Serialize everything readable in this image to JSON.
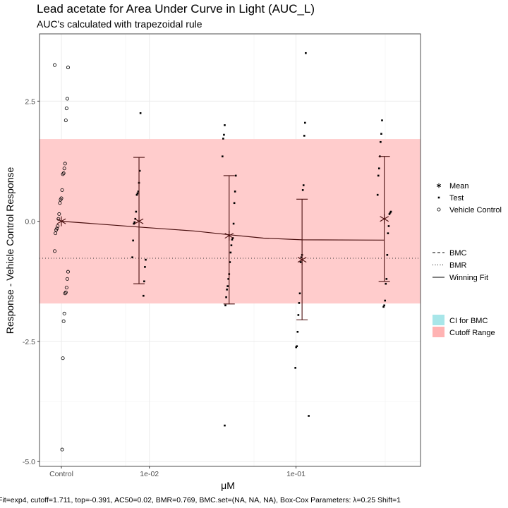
{
  "chart_data": {
    "type": "scatter",
    "title": "Lead acetate for Area Under Curve in Light (AUC_L)",
    "subtitle": "AUC's calculated with trapezoidal rule",
    "xlabel": "μM",
    "ylabel": "Response - Vehicle Control Response",
    "caption": "Fit=exp4, cutoff=1.711, top=-0.391, AC50=0.02, BMR=0.769, BMC.set=(NA, NA, NA), Box-Cox Parameters: λ=0.25 Shift=1",
    "x_ticks": [
      "Control",
      "1e-02",
      "1e-01"
    ],
    "y_ticks": [
      {
        "value": 2.5,
        "label": "2.5"
      },
      {
        "value": 0,
        "label": "0.0"
      },
      {
        "value": -2.5,
        "label": "-2.5"
      },
      {
        "value": -5,
        "label": "-5.0"
      }
    ],
    "ylim": [
      -5.1,
      3.9
    ],
    "cutoff_range": [
      -1.711,
      1.711
    ],
    "bmr_line": -0.769,
    "colors": {
      "cutoff": "#ffcccc",
      "ci": "#a8e6e9",
      "cutoff_legend": "#ffb3b3",
      "line": "#4a0f0f",
      "points": "#000000",
      "grid": "#ebebeb",
      "panel_border": "#4d4d4d"
    },
    "legend": {
      "points": [
        {
          "label": "Mean",
          "shape": "asterisk"
        },
        {
          "label": "Test",
          "shape": "dot"
        },
        {
          "label": "Vehicle Control",
          "shape": "circle"
        }
      ],
      "lines": [
        {
          "label": "BMC",
          "style": "dashed"
        },
        {
          "label": "BMR",
          "style": "dotted"
        },
        {
          "label": "Winning Fit",
          "style": "solid"
        }
      ],
      "fills": [
        {
          "label": "CI for BMC",
          "color": "#a8e6e9"
        },
        {
          "label": "Cutoff Range",
          "color": "#ffb3b3"
        }
      ]
    },
    "series": [
      {
        "group": "Control",
        "kind": "vehicle_control",
        "x": "Control",
        "values": [
          3.25,
          3.2,
          2.55,
          2.35,
          2.1,
          1.2,
          1.1,
          1.0,
          0.98,
          0.65,
          0.48,
          0.45,
          0.38,
          0.15,
          0.05,
          -0.1,
          -0.15,
          -0.18,
          -0.25,
          -0.62,
          -1.05,
          -1.2,
          -1.38,
          -1.48,
          -1.5,
          -1.92,
          -2.08,
          -2.85,
          -4.75
        ]
      },
      {
        "group": "1e-02",
        "kind": "test",
        "x": 0.0085,
        "values": [
          2.25,
          1.05,
          0.8,
          0.62,
          0.58,
          0.55,
          0.2,
          0.05,
          -0.02,
          -0.05,
          -0.4,
          -0.75,
          -0.8,
          -0.95,
          -1.25,
          -1.55
        ]
      },
      {
        "group": "dose-3",
        "kind": "test",
        "x": 0.035,
        "values": [
          2.0,
          1.8,
          1.72,
          1.35,
          0.95,
          0.62,
          0.38,
          -0.05,
          -0.35,
          -0.38,
          -0.5,
          -0.65,
          -0.85,
          -1.1,
          -1.2,
          -1.35,
          -1.42,
          -1.58,
          -1.75,
          -4.25
        ]
      },
      {
        "group": "dose-4",
        "kind": "test",
        "x": 0.11,
        "values": [
          3.5,
          2.05,
          1.78,
          0.75,
          0.65,
          -0.7,
          -0.75,
          -0.85,
          -1.5,
          -1.7,
          -1.95,
          -2.3,
          -2.6,
          -2.62,
          -3.05,
          -4.05
        ]
      },
      {
        "group": "dose-5",
        "kind": "test",
        "x": 0.4,
        "values": [
          2.1,
          1.82,
          1.65,
          1.35,
          1.1,
          0.95,
          0.55,
          0.2,
          0.18,
          0.15,
          -0.1,
          -0.25,
          -0.7,
          -1.2,
          -1.3,
          -1.65,
          -1.75,
          -1.78
        ]
      }
    ],
    "means": [
      {
        "x": "Control",
        "mean": 0.0,
        "ci": null
      },
      {
        "x": 0.0085,
        "mean": 0.0,
        "ci": [
          -1.3,
          1.33
        ]
      },
      {
        "x": 0.035,
        "mean": -0.3,
        "ci": [
          -1.72,
          0.95
        ]
      },
      {
        "x": 0.11,
        "mean": -0.8,
        "ci": [
          -2.05,
          0.46
        ]
      },
      {
        "x": 0.4,
        "mean": 0.05,
        "ci": [
          -1.25,
          1.35
        ]
      }
    ],
    "fit_curve": [
      {
        "x": "Control",
        "y": 0.0
      },
      {
        "x": 0.0085,
        "y": -0.12
      },
      {
        "x": 0.02,
        "y": -0.2
      },
      {
        "x": 0.035,
        "y": -0.28
      },
      {
        "x": 0.06,
        "y": -0.35
      },
      {
        "x": 0.11,
        "y": -0.385
      },
      {
        "x": 0.4,
        "y": -0.391
      }
    ],
    "grid": true
  }
}
